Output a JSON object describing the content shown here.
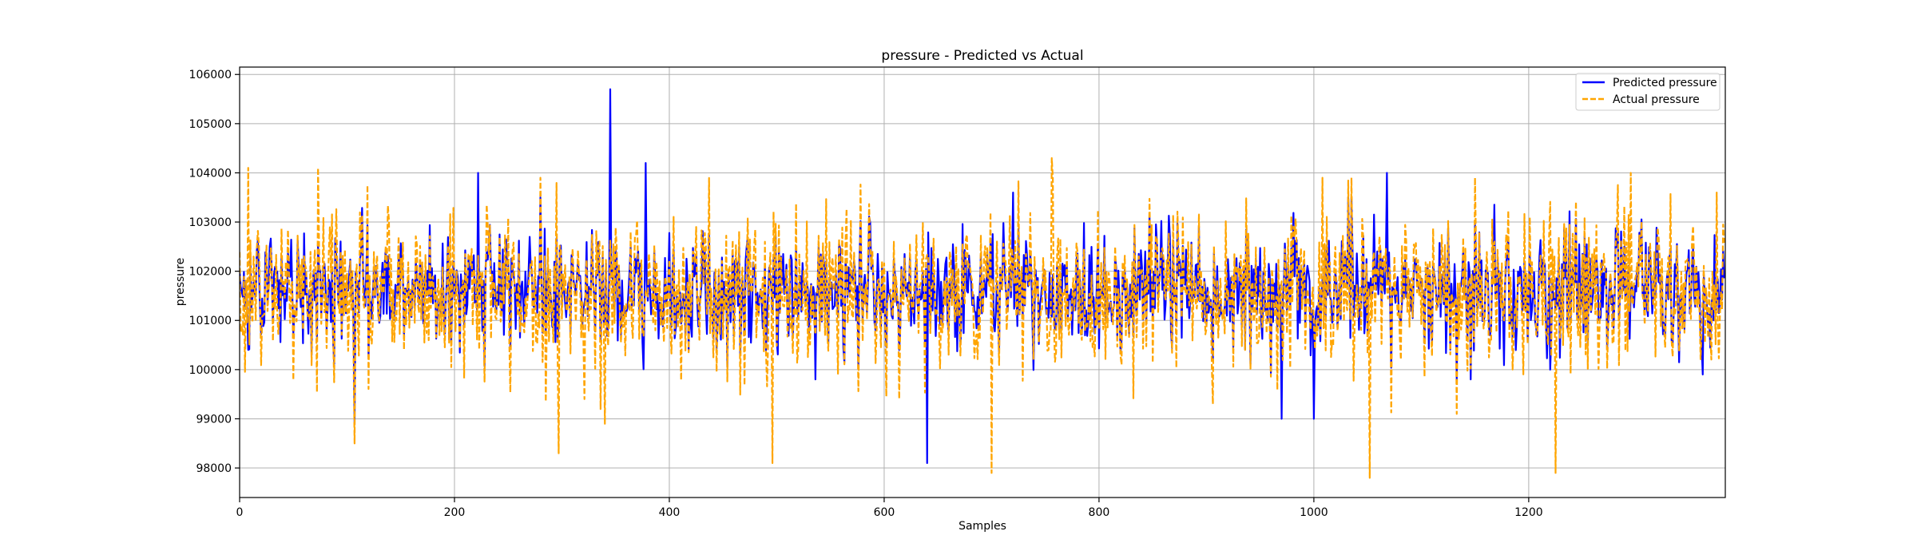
{
  "chart_data": {
    "type": "line",
    "title": "pressure - Predicted vs Actual",
    "xlabel": "Samples",
    "ylabel": "pressure",
    "xlim": [
      0,
      1383
    ],
    "ylim": [
      97400,
      106150
    ],
    "xticks": [
      0,
      200,
      400,
      600,
      800,
      1000,
      1200
    ],
    "yticks": [
      98000,
      99000,
      100000,
      101000,
      102000,
      103000,
      104000,
      105000,
      106000
    ],
    "grid": true,
    "legend_position": "top-right",
    "sample_count": 1383,
    "series": [
      {
        "name": "Predicted pressure",
        "color": "#0000ff",
        "line_style": "solid",
        "baseline": 101600,
        "typical_range": [
          100000,
          103300
        ],
        "notable_points": [
          {
            "x": 8,
            "y": 100400
          },
          {
            "x": 107,
            "y": 98900
          },
          {
            "x": 222,
            "y": 104000
          },
          {
            "x": 345,
            "y": 105700
          },
          {
            "x": 378,
            "y": 104200
          },
          {
            "x": 640,
            "y": 98100
          },
          {
            "x": 720,
            "y": 103600
          },
          {
            "x": 970,
            "y": 99000
          },
          {
            "x": 1000,
            "y": 99000
          },
          {
            "x": 1068,
            "y": 104000
          },
          {
            "x": 1220,
            "y": 100000
          },
          {
            "x": 1362,
            "y": 99900
          }
        ]
      },
      {
        "name": "Actual pressure",
        "color": "#ffa500",
        "line_style": "dashed",
        "baseline": 101600,
        "typical_range": [
          99500,
          103600
        ],
        "notable_points": [
          {
            "x": 8,
            "y": 104100
          },
          {
            "x": 73,
            "y": 104100
          },
          {
            "x": 107,
            "y": 98500
          },
          {
            "x": 297,
            "y": 98300
          },
          {
            "x": 340,
            "y": 98900
          },
          {
            "x": 496,
            "y": 98100
          },
          {
            "x": 700,
            "y": 97900
          },
          {
            "x": 756,
            "y": 104300
          },
          {
            "x": 1052,
            "y": 97800
          },
          {
            "x": 1225,
            "y": 97900
          },
          {
            "x": 1295,
            "y": 104000
          },
          {
            "x": 1375,
            "y": 103600
          }
        ]
      }
    ]
  }
}
